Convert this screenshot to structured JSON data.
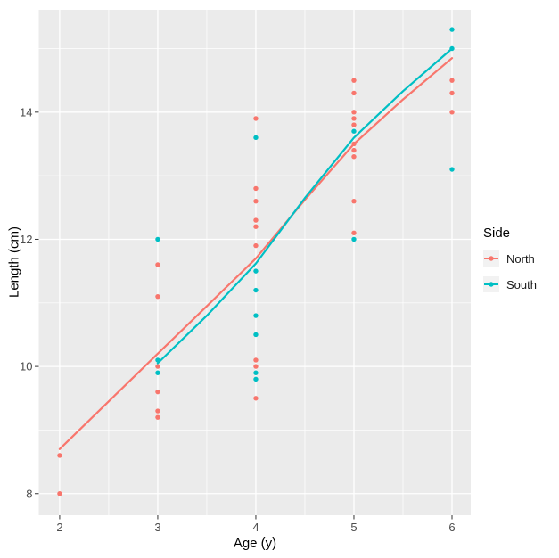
{
  "chart_data": {
    "type": "scatter",
    "title": "",
    "xlabel": "Age (y)",
    "ylabel": "Length (cm)",
    "x_ticks": [
      2,
      3,
      4,
      5,
      6
    ],
    "y_ticks": [
      8,
      10,
      12,
      14
    ],
    "x_minor": [
      2.5,
      3.5,
      4.5,
      5.5
    ],
    "y_minor": [
      9,
      11,
      13,
      15
    ],
    "xlim": [
      1.787,
      6.191
    ],
    "ylim": [
      7.66,
      15.61
    ],
    "grid": true,
    "panel_bg": "#EBEBEB",
    "grid_color": "#FFFFFF",
    "tick_color": "#333333",
    "tick_label_color": "#4D4D4D",
    "legend": {
      "title": "Side",
      "position": "right",
      "key_bg": "#F2F2F2"
    },
    "series": [
      {
        "name": "North",
        "color": "#F8766D",
        "points": [
          [
            2,
            8.0
          ],
          [
            2,
            8.6
          ],
          [
            3,
            9.2
          ],
          [
            3,
            9.3
          ],
          [
            3,
            9.6
          ],
          [
            3,
            10.0
          ],
          [
            3,
            11.1
          ],
          [
            3,
            11.6
          ],
          [
            4,
            9.5
          ],
          [
            4,
            10.0
          ],
          [
            4,
            10.1
          ],
          [
            4,
            11.9
          ],
          [
            4,
            12.2
          ],
          [
            4,
            12.3
          ],
          [
            4,
            12.6
          ],
          [
            4,
            12.8
          ],
          [
            4,
            13.9
          ],
          [
            5,
            12.1
          ],
          [
            5,
            12.6
          ],
          [
            5,
            13.3
          ],
          [
            5,
            13.4
          ],
          [
            5,
            13.5
          ],
          [
            5,
            13.8
          ],
          [
            5,
            13.9
          ],
          [
            5,
            14.0
          ],
          [
            5,
            14.3
          ],
          [
            5,
            14.5
          ],
          [
            6,
            14.0
          ],
          [
            6,
            14.3
          ],
          [
            6,
            14.5
          ]
        ]
      },
      {
        "name": "South",
        "color": "#00BFC4",
        "points": [
          [
            3,
            9.9
          ],
          [
            3,
            10.1
          ],
          [
            3,
            12.0
          ],
          [
            4,
            9.8
          ],
          [
            4,
            9.9
          ],
          [
            4,
            10.5
          ],
          [
            4,
            10.8
          ],
          [
            4,
            11.2
          ],
          [
            4,
            11.5
          ],
          [
            4,
            13.6
          ],
          [
            5,
            12.0
          ],
          [
            5,
            13.7
          ],
          [
            6,
            13.1
          ],
          [
            6,
            15.0
          ],
          [
            6,
            15.3
          ]
        ]
      }
    ],
    "smooth_lines": [
      {
        "name": "North",
        "color": "#F8766D",
        "path": [
          [
            2,
            8.7
          ],
          [
            2.5,
            9.45
          ],
          [
            3,
            10.2
          ],
          [
            3.5,
            10.95
          ],
          [
            4,
            11.7
          ],
          [
            4.5,
            12.62
          ],
          [
            5,
            13.5
          ],
          [
            5.5,
            14.2
          ],
          [
            6,
            14.85
          ]
        ]
      },
      {
        "name": "South",
        "color": "#00BFC4",
        "path": [
          [
            3,
            10.05
          ],
          [
            3.5,
            10.8
          ],
          [
            4,
            11.62
          ],
          [
            4.5,
            12.65
          ],
          [
            5,
            13.6
          ],
          [
            5.5,
            14.33
          ],
          [
            6,
            15.0
          ]
        ]
      }
    ]
  }
}
